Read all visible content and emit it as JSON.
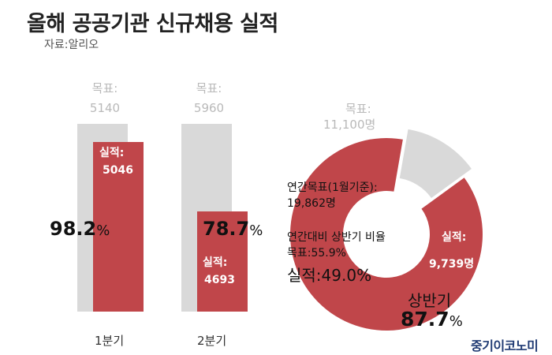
{
  "title": "올해 공공기관 신규채용 실적",
  "source": "자료:알리오",
  "brand": "중기이코노미",
  "colors": {
    "target_bar": "#d9d9d9",
    "actual_bar": "#c0464a",
    "donut_grey": "#d9d9d9",
    "donut_red": "#c0464a"
  },
  "chart_data": [
    {
      "type": "bar",
      "categories": [
        "1분기",
        "2분기"
      ],
      "series": [
        {
          "name": "목표",
          "values": [
            5140,
            5960
          ]
        },
        {
          "name": "실적",
          "values": [
            5046,
            4693
          ]
        }
      ],
      "target_label": "목표:",
      "actual_label": "실적:",
      "target_values_text": [
        "5140",
        "5960"
      ],
      "actual_values_text": [
        "5046",
        "4693"
      ],
      "rate_text": [
        {
          "value": "98.2",
          "unit": "%"
        },
        {
          "value": "78.7",
          "unit": "%"
        }
      ]
    },
    {
      "type": "pie",
      "slices": [
        {
          "label": "실적",
          "value": 9739
        },
        {
          "label": "목표",
          "value": 11100
        }
      ],
      "target_label": "목표:",
      "target_value_text": "11,100명",
      "actual_label": "실적:",
      "actual_value_text": "9,739명",
      "annual_label": "연간목표(1월기준):",
      "annual_value_text": "19,862명",
      "ratio_title": "연간대비 상반기 비율",
      "ratio_target_text": "목표:55.9%",
      "ratio_actual_text": "실적:49.0%",
      "half_label": "상반기",
      "half_rate": {
        "value": "87.7",
        "unit": "%"
      }
    }
  ]
}
